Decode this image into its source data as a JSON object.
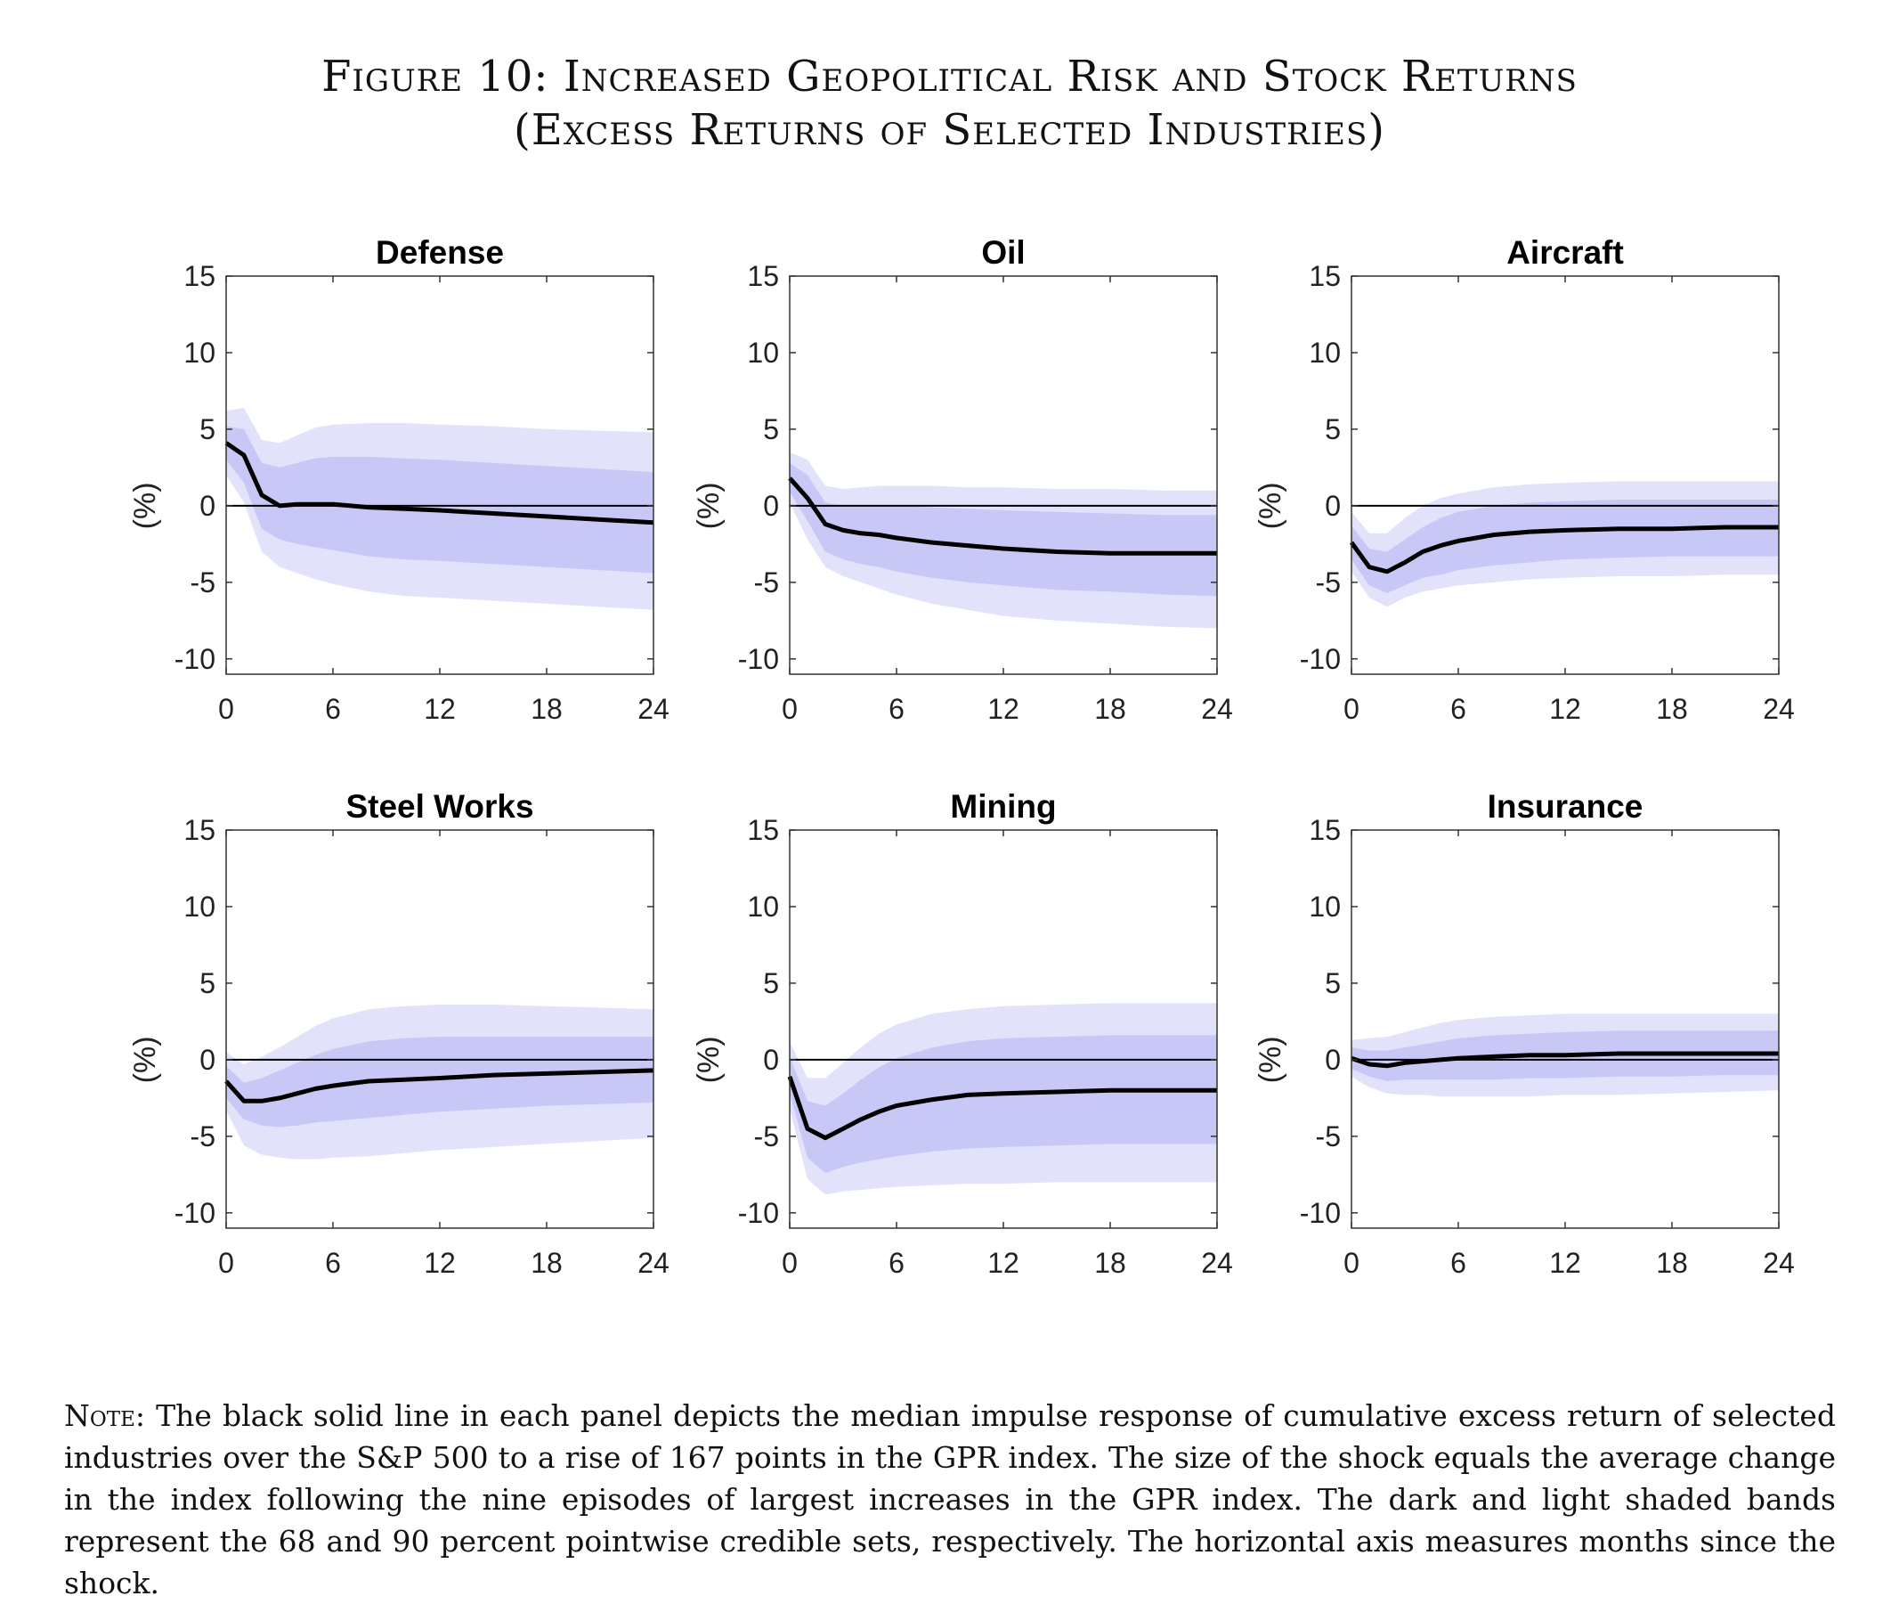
{
  "figure": {
    "title_line1": "Figure 10: Increased Geopolitical Risk and Stock Returns",
    "title_line2": "(Excess Returns of Selected Industries)"
  },
  "note": {
    "label": "Note:",
    "text": "The black solid line in each panel depicts the median impulse response of cumulative excess return of selected industries over the S&P 500 to a rise of 167 points in the GPR index. The size of the shock equals the average change in the index following the nine episodes of largest increases in the GPR index. The dark and light shaded bands represent the 68 and 90 percent pointwise credible sets, respectively. The horizontal axis measures months since the shock."
  },
  "colors": {
    "band90": "#e2e2fb",
    "band68": "#c8c8f7",
    "median": "#000000",
    "zero_line": "#000000",
    "axis": "#333333"
  },
  "chart_data": [
    {
      "type": "line",
      "title": "Defense",
      "ylabel": "(%)",
      "xlabel": "",
      "xlim": [
        0,
        24
      ],
      "ylim": [
        -11,
        15
      ],
      "xticks": [
        0,
        6,
        12,
        18,
        24
      ],
      "yticks": [
        15,
        10,
        5,
        0,
        -5,
        -10
      ],
      "x": [
        0,
        1,
        2,
        3,
        4,
        5,
        6,
        8,
        10,
        12,
        15,
        18,
        21,
        24
      ],
      "median": [
        4.1,
        3.3,
        0.7,
        0.0,
        0.1,
        0.1,
        0.1,
        -0.1,
        -0.2,
        -0.3,
        -0.5,
        -0.7,
        -0.9,
        -1.1
      ],
      "band68_upper": [
        5.2,
        5.0,
        2.8,
        2.5,
        2.8,
        3.1,
        3.2,
        3.2,
        3.1,
        3.0,
        2.8,
        2.6,
        2.4,
        2.2
      ],
      "band68_lower": [
        3.0,
        1.5,
        -1.5,
        -2.2,
        -2.5,
        -2.7,
        -2.9,
        -3.3,
        -3.5,
        -3.6,
        -3.8,
        -4.0,
        -4.2,
        -4.4
      ],
      "band90_upper": [
        6.2,
        6.4,
        4.3,
        4.1,
        4.6,
        5.1,
        5.3,
        5.4,
        5.4,
        5.3,
        5.2,
        5.0,
        4.9,
        4.8
      ],
      "band90_lower": [
        2.0,
        0.2,
        -3.0,
        -4.0,
        -4.4,
        -4.8,
        -5.1,
        -5.6,
        -5.9,
        -6.0,
        -6.2,
        -6.4,
        -6.6,
        -6.8
      ]
    },
    {
      "type": "line",
      "title": "Oil",
      "ylabel": "(%)",
      "xlabel": "",
      "xlim": [
        0,
        24
      ],
      "ylim": [
        -11,
        15
      ],
      "xticks": [
        0,
        6,
        12,
        18,
        24
      ],
      "yticks": [
        15,
        10,
        5,
        0,
        -5,
        -10
      ],
      "x": [
        0,
        1,
        2,
        3,
        4,
        5,
        6,
        8,
        10,
        12,
        15,
        18,
        21,
        24
      ],
      "median": [
        1.8,
        0.5,
        -1.2,
        -1.6,
        -1.8,
        -1.9,
        -2.1,
        -2.4,
        -2.6,
        -2.8,
        -3.0,
        -3.1,
        -3.1,
        -3.1
      ],
      "band68_upper": [
        2.8,
        2.0,
        0.2,
        0.0,
        0.0,
        0.0,
        0.0,
        -0.1,
        -0.2,
        -0.3,
        -0.4,
        -0.5,
        -0.6,
        -0.6
      ],
      "band68_lower": [
        0.9,
        -1.0,
        -3.0,
        -3.5,
        -3.8,
        -4.0,
        -4.3,
        -4.7,
        -5.0,
        -5.2,
        -5.5,
        -5.6,
        -5.8,
        -5.9
      ],
      "band90_upper": [
        3.5,
        3.0,
        1.3,
        1.1,
        1.2,
        1.3,
        1.3,
        1.3,
        1.2,
        1.2,
        1.1,
        1.1,
        1.0,
        1.0
      ],
      "band90_lower": [
        0.2,
        -2.2,
        -4.0,
        -4.6,
        -5.0,
        -5.4,
        -5.8,
        -6.4,
        -6.8,
        -7.2,
        -7.5,
        -7.7,
        -7.9,
        -8.0
      ]
    },
    {
      "type": "line",
      "title": "Aircraft",
      "ylabel": "(%)",
      "xlabel": "",
      "xlim": [
        0,
        24
      ],
      "ylim": [
        -11,
        15
      ],
      "xticks": [
        0,
        6,
        12,
        18,
        24
      ],
      "yticks": [
        15,
        10,
        5,
        0,
        -5,
        -10
      ],
      "x": [
        0,
        1,
        2,
        3,
        4,
        5,
        6,
        8,
        10,
        12,
        15,
        18,
        21,
        24
      ],
      "median": [
        -2.4,
        -4.0,
        -4.3,
        -3.7,
        -3.0,
        -2.6,
        -2.3,
        -1.9,
        -1.7,
        -1.6,
        -1.5,
        -1.5,
        -1.4,
        -1.4
      ],
      "band68_upper": [
        -1.3,
        -2.8,
        -3.0,
        -2.2,
        -1.4,
        -0.8,
        -0.4,
        0.0,
        0.2,
        0.3,
        0.4,
        0.4,
        0.4,
        0.4
      ],
      "band68_lower": [
        -3.5,
        -5.2,
        -5.7,
        -5.2,
        -4.7,
        -4.5,
        -4.2,
        -3.9,
        -3.7,
        -3.5,
        -3.4,
        -3.3,
        -3.3,
        -3.3
      ],
      "band90_upper": [
        -0.4,
        -1.8,
        -1.8,
        -0.8,
        0.0,
        0.5,
        0.8,
        1.2,
        1.4,
        1.5,
        1.6,
        1.6,
        1.6,
        1.6
      ],
      "band90_lower": [
        -4.3,
        -6.0,
        -6.6,
        -6.0,
        -5.6,
        -5.4,
        -5.2,
        -5.0,
        -4.8,
        -4.7,
        -4.6,
        -4.6,
        -4.5,
        -4.5
      ]
    },
    {
      "type": "line",
      "title": "Steel Works",
      "ylabel": "(%)",
      "xlabel": "",
      "xlim": [
        0,
        24
      ],
      "ylim": [
        -11,
        15
      ],
      "xticks": [
        0,
        6,
        12,
        18,
        24
      ],
      "yticks": [
        15,
        10,
        5,
        0,
        -5,
        -10
      ],
      "x": [
        0,
        1,
        2,
        3,
        4,
        5,
        6,
        8,
        10,
        12,
        15,
        18,
        21,
        24
      ],
      "median": [
        -1.4,
        -2.7,
        -2.7,
        -2.5,
        -2.2,
        -1.9,
        -1.7,
        -1.4,
        -1.3,
        -1.2,
        -1.0,
        -0.9,
        -0.8,
        -0.7
      ],
      "band68_upper": [
        -0.4,
        -1.5,
        -1.2,
        -0.7,
        -0.2,
        0.3,
        0.7,
        1.2,
        1.4,
        1.5,
        1.5,
        1.5,
        1.5,
        1.5
      ],
      "band68_lower": [
        -2.5,
        -3.9,
        -4.3,
        -4.4,
        -4.3,
        -4.1,
        -4.0,
        -3.8,
        -3.6,
        -3.4,
        -3.2,
        -3.0,
        -2.9,
        -2.8
      ],
      "band90_upper": [
        0.5,
        -0.3,
        0.2,
        0.8,
        1.5,
        2.2,
        2.7,
        3.3,
        3.5,
        3.6,
        3.6,
        3.5,
        3.4,
        3.3
      ],
      "band90_lower": [
        -3.3,
        -5.6,
        -6.2,
        -6.4,
        -6.5,
        -6.5,
        -6.4,
        -6.3,
        -6.1,
        -5.9,
        -5.7,
        -5.5,
        -5.3,
        -5.1
      ]
    },
    {
      "type": "line",
      "title": "Mining",
      "ylabel": "(%)",
      "xlabel": "",
      "xlim": [
        0,
        24
      ],
      "ylim": [
        -11,
        15
      ],
      "xticks": [
        0,
        6,
        12,
        18,
        24
      ],
      "yticks": [
        15,
        10,
        5,
        0,
        -5,
        -10
      ],
      "x": [
        0,
        1,
        2,
        3,
        4,
        5,
        6,
        8,
        10,
        12,
        15,
        18,
        21,
        24
      ],
      "median": [
        -1.1,
        -4.5,
        -5.1,
        -4.5,
        -3.9,
        -3.4,
        -3.0,
        -2.6,
        -2.3,
        -2.2,
        -2.1,
        -2.0,
        -2.0,
        -2.0
      ],
      "band68_upper": [
        0.2,
        -2.7,
        -3.0,
        -2.2,
        -1.3,
        -0.5,
        0.1,
        0.8,
        1.2,
        1.4,
        1.5,
        1.6,
        1.6,
        1.6
      ],
      "band68_lower": [
        -2.2,
        -6.4,
        -7.4,
        -7.0,
        -6.7,
        -6.5,
        -6.3,
        -6.0,
        -5.8,
        -5.7,
        -5.6,
        -5.5,
        -5.5,
        -5.5
      ],
      "band90_upper": [
        1.2,
        -1.2,
        -1.2,
        -0.2,
        0.8,
        1.7,
        2.3,
        3.0,
        3.3,
        3.5,
        3.6,
        3.7,
        3.7,
        3.7
      ],
      "band90_lower": [
        -3.2,
        -7.8,
        -8.8,
        -8.6,
        -8.5,
        -8.4,
        -8.3,
        -8.2,
        -8.1,
        -8.1,
        -8.0,
        -8.0,
        -8.0,
        -8.0
      ]
    },
    {
      "type": "line",
      "title": "Insurance",
      "ylabel": "(%)",
      "xlabel": "",
      "xlim": [
        0,
        24
      ],
      "ylim": [
        -11,
        15
      ],
      "xticks": [
        0,
        6,
        12,
        18,
        24
      ],
      "yticks": [
        15,
        10,
        5,
        0,
        -5,
        -10
      ],
      "x": [
        0,
        1,
        2,
        3,
        4,
        5,
        6,
        8,
        10,
        12,
        15,
        18,
        21,
        24
      ],
      "median": [
        0.1,
        -0.3,
        -0.4,
        -0.2,
        -0.1,
        0.0,
        0.1,
        0.2,
        0.3,
        0.3,
        0.4,
        0.4,
        0.4,
        0.4
      ],
      "band68_upper": [
        0.8,
        0.6,
        0.6,
        0.8,
        1.0,
        1.2,
        1.4,
        1.6,
        1.7,
        1.8,
        1.9,
        1.9,
        1.9,
        1.9
      ],
      "band68_lower": [
        -0.6,
        -1.1,
        -1.4,
        -1.3,
        -1.3,
        -1.3,
        -1.3,
        -1.3,
        -1.2,
        -1.2,
        -1.1,
        -1.1,
        -1.0,
        -1.0
      ],
      "band90_upper": [
        1.3,
        1.4,
        1.5,
        1.8,
        2.1,
        2.4,
        2.6,
        2.8,
        2.9,
        3.0,
        3.0,
        3.0,
        3.0,
        3.0
      ],
      "band90_lower": [
        -1.1,
        -1.8,
        -2.2,
        -2.3,
        -2.3,
        -2.4,
        -2.4,
        -2.4,
        -2.4,
        -2.3,
        -2.3,
        -2.2,
        -2.1,
        -2.0
      ]
    }
  ]
}
